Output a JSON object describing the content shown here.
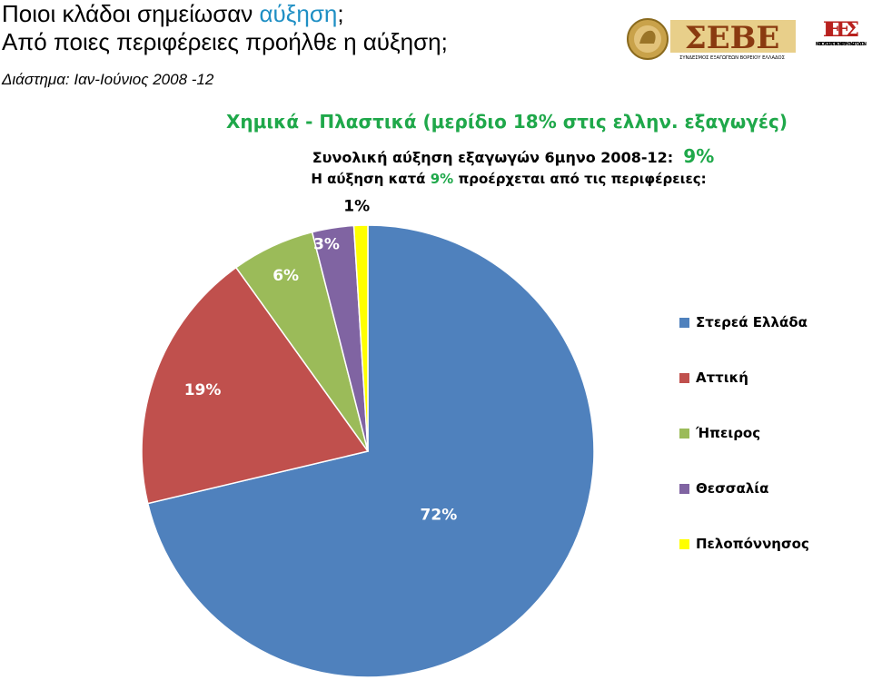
{
  "slide": {
    "title_line1_prefix": "Ποιοι κλάδοι σημείωσαν ",
    "title_line1_highlight": "αύξηση",
    "title_line1_suffix": ";",
    "title_line2": "Από ποιες περιφέρειες προήλθε η αύξηση;",
    "subtitle": "Διάστημα: Ιαν-Ιούνιος 2008 -12"
  },
  "logos": {
    "seve_text": "ΣΕΒΕ",
    "seve_caption": "ΣΥΝΔΕΣΜΟΣ ΕΞΑΓΩΓΕΩΝ ΒΟΡΕΙΟΥ ΕΛΛΑΔΟΣ",
    "iees_letters": "ΙΕΕΣ",
    "iees_caption": "ΙΝΣΤΙΤΟΥΤΟ ΕΞΑΓΩΓΙΚΩΝ ΕΡΕΥΝΩΝ & ΣΠΟΥΔΩΝ"
  },
  "chart_data": {
    "type": "pie",
    "title": "Χημικά - Πλαστικά (μερίδιο 18% στις ελλην. εξαγωγές)",
    "subtitle_1_prefix": "Συνολική αύξηση εξαγωγών 6μηνο 2008-12:",
    "subtitle_1_value": "9%",
    "subtitle_2_prefix": "Η αύξηση κατά",
    "subtitle_2_value": "9%",
    "subtitle_2_suffix": "προέρχεται από τις περιφέρειες:",
    "legend_position": "right",
    "slices": [
      {
        "label": "Στερεά Ελλάδα",
        "value": 72,
        "display": "72%",
        "color": "#4f81bd"
      },
      {
        "label": "Αττική",
        "value": 19,
        "display": "19%",
        "color": "#c0504d"
      },
      {
        "label": "Ήπειρος",
        "value": 6,
        "display": "6%",
        "color": "#9bbb59"
      },
      {
        "label": "Θεσσαλία",
        "value": 3,
        "display": "3%",
        "color": "#8064a2"
      },
      {
        "label": "Πελοπόννησος",
        "value": 1,
        "display": "1%",
        "color": "#ffff00"
      }
    ]
  }
}
